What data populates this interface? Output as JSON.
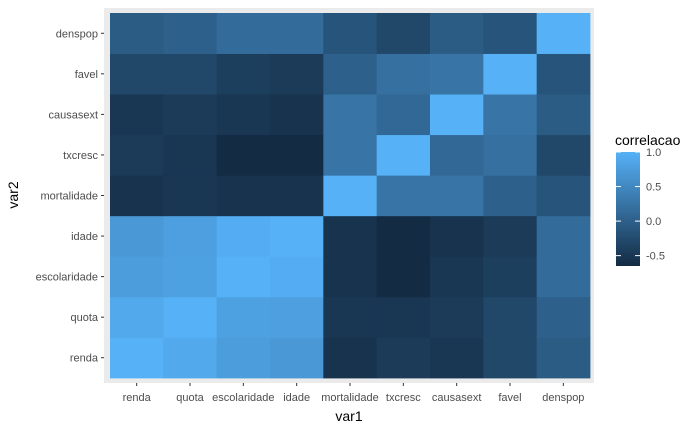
{
  "chart_data": {
    "type": "heatmap",
    "title": "",
    "xlabel": "var1",
    "ylabel": "var2",
    "x_categories": [
      "renda",
      "quota",
      "escolaridade",
      "idade",
      "mortalidade",
      "txcresc",
      "causasext",
      "favel",
      "denspop"
    ],
    "y_categories": [
      "renda",
      "quota",
      "escolaridade",
      "idade",
      "mortalidade",
      "txcresc",
      "causasext",
      "favel",
      "denspop"
    ],
    "values": [
      [
        1.0,
        0.9,
        0.75,
        0.7,
        -0.55,
        -0.45,
        -0.5,
        -0.3,
        -0.05
      ],
      [
        0.9,
        1.0,
        0.8,
        0.78,
        -0.5,
        -0.5,
        -0.45,
        -0.3,
        0.0
      ],
      [
        0.75,
        0.8,
        1.0,
        0.95,
        -0.55,
        -0.65,
        -0.5,
        -0.4,
        0.15
      ],
      [
        0.7,
        0.78,
        0.95,
        1.0,
        -0.55,
        -0.65,
        -0.55,
        -0.45,
        0.15
      ],
      [
        -0.55,
        -0.5,
        -0.55,
        -0.55,
        1.0,
        0.25,
        0.25,
        0.0,
        -0.15
      ],
      [
        -0.45,
        -0.5,
        -0.65,
        -0.65,
        0.25,
        1.0,
        0.1,
        0.2,
        -0.3
      ],
      [
        -0.5,
        -0.45,
        -0.5,
        -0.55,
        0.25,
        0.1,
        1.0,
        0.25,
        -0.05
      ],
      [
        -0.3,
        -0.3,
        -0.4,
        -0.45,
        0.0,
        0.2,
        0.25,
        1.0,
        -0.15
      ],
      [
        -0.05,
        0.0,
        0.15,
        0.15,
        -0.15,
        -0.3,
        -0.05,
        -0.15,
        1.0
      ]
    ],
    "legend": {
      "title": "correlacao",
      "ticks": [
        "1.0",
        "0.5",
        "0.0",
        "-0.5"
      ],
      "tick_values": [
        1.0,
        0.5,
        0.0,
        -0.5
      ],
      "min": -0.65,
      "max": 1.0,
      "placement": "right"
    },
    "colors": {
      "low": "#132B43",
      "high": "#56B1F7",
      "panel_background": "#EBEBEB"
    },
    "grid": true
  }
}
